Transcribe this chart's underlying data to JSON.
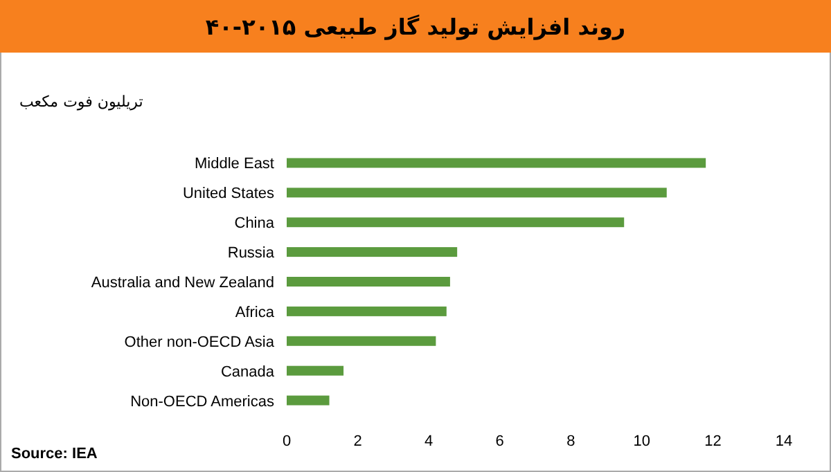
{
  "chart_data": {
    "type": "bar",
    "orientation": "horizontal",
    "title": "روند افزایش تولید گاز طبیعی ۲۰۱۵-۴۰",
    "ylabel": "تریلیون فوت مکعب",
    "categories": [
      "Middle East",
      "United States",
      "China",
      "Russia",
      "Australia and New Zealand",
      "Africa",
      "Other non-OECD Asia",
      "Canada",
      "Non-OECD Americas"
    ],
    "values": [
      11.8,
      10.7,
      9.5,
      4.8,
      4.6,
      4.5,
      4.2,
      1.6,
      1.2
    ],
    "color": "#5b9b3e",
    "xlim": [
      0,
      14
    ],
    "xticks": [
      0,
      2,
      4,
      6,
      8,
      10,
      12,
      14
    ],
    "grid": false,
    "annotations": [
      "Source: IEA"
    ]
  }
}
